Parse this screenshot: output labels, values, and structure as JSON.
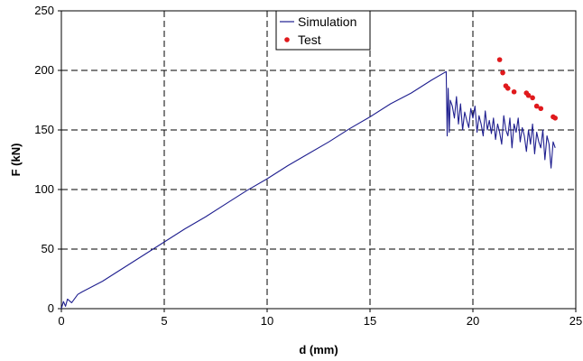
{
  "chart_data": {
    "type": "line",
    "xlabel": "d (mm)",
    "ylabel": "F (kN)",
    "xlim": [
      0,
      25
    ],
    "ylim": [
      0,
      250
    ],
    "xticks": [
      0,
      5,
      10,
      15,
      20,
      25
    ],
    "yticks": [
      0,
      50,
      100,
      150,
      200,
      250
    ],
    "grid": true,
    "grid_style": "dashed",
    "legend_position": "top-center",
    "series": [
      {
        "name": "Simulation",
        "kind": "line",
        "color": "#1f1f8f",
        "x": [
          0,
          0.1,
          0.2,
          0.3,
          0.5,
          0.8,
          1.0,
          2.0,
          3.0,
          4.0,
          5.0,
          6.0,
          7.0,
          8.0,
          9.0,
          10.0,
          11.0,
          12.0,
          13.0,
          14.0,
          15.0,
          16.0,
          17.0,
          18.0,
          18.7,
          18.75,
          18.8,
          18.85,
          18.9,
          19.0,
          19.1,
          19.2,
          19.3,
          19.4,
          19.5,
          19.6,
          19.7,
          19.8,
          19.9,
          20.0,
          20.1,
          20.2,
          20.3,
          20.4,
          20.5,
          20.6,
          20.7,
          20.8,
          20.9,
          21.0,
          21.1,
          21.2,
          21.3,
          21.4,
          21.5,
          21.6,
          21.7,
          21.8,
          21.9,
          22.0,
          22.1,
          22.2,
          22.3,
          22.4,
          22.5,
          22.6,
          22.7,
          22.8,
          22.9,
          23.0,
          23.1,
          23.2,
          23.3,
          23.4,
          23.5,
          23.6,
          23.7,
          23.8,
          23.9,
          24.0
        ],
        "y": [
          0,
          6,
          2,
          8,
          5,
          12,
          14,
          23,
          34,
          45,
          56,
          67,
          77,
          88,
          99,
          109,
          120,
          130,
          140,
          151,
          161,
          172,
          181,
          192,
          199,
          145,
          185,
          148,
          175,
          170,
          160,
          178,
          155,
          172,
          150,
          165,
          158,
          152,
          168,
          160,
          170,
          148,
          162,
          155,
          145,
          166,
          150,
          158,
          147,
          160,
          142,
          155,
          148,
          138,
          162,
          150,
          145,
          160,
          135,
          155,
          148,
          160,
          140,
          152,
          145,
          132,
          150,
          138,
          155,
          130,
          148,
          140,
          135,
          150,
          125,
          145,
          138,
          118,
          140,
          135
        ]
      },
      {
        "name": "Test",
        "kind": "scatter",
        "color": "#e0191c",
        "x": [
          21.3,
          21.45,
          21.6,
          21.7,
          22.0,
          22.6,
          22.7,
          22.9,
          23.1,
          23.3,
          23.9,
          24.0
        ],
        "y": [
          209,
          198,
          187,
          185,
          182,
          181,
          179,
          177,
          170,
          168,
          161,
          160
        ]
      }
    ]
  }
}
